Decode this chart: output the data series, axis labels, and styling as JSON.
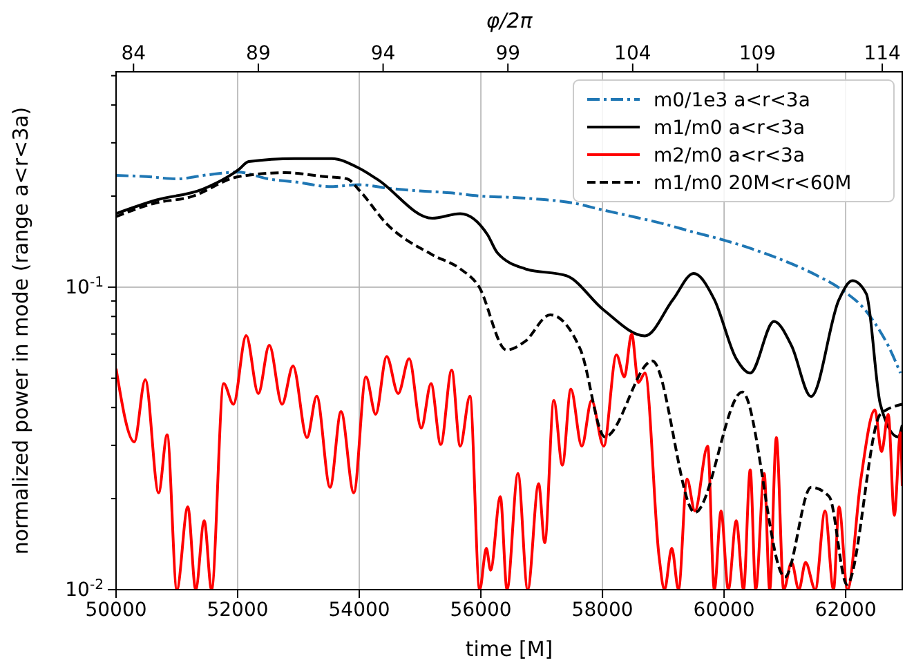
{
  "chart_data": {
    "type": "line",
    "xlabel": "time [M]",
    "ylabel": "normalized power in mode (range a<r<3a)",
    "x2label": "φ/2π",
    "xlim": [
      50000,
      62930
    ],
    "xticks": [
      50000,
      52000,
      54000,
      56000,
      58000,
      60000,
      62000
    ],
    "ylim": [
      0.01,
      0.515
    ],
    "log": true,
    "yticks": [
      {
        "value": 0.01,
        "label": "10$^{-2}$"
      },
      {
        "value": 0.02,
        "label": null
      },
      {
        "value": 0.03,
        "label": null
      },
      {
        "value": 0.04,
        "label": null
      },
      {
        "value": 0.05,
        "label": null
      },
      {
        "value": 0.06,
        "label": null
      },
      {
        "value": 0.07,
        "label": null
      },
      {
        "value": 0.08,
        "label": null
      },
      {
        "value": 0.09,
        "label": null
      },
      {
        "value": 0.1,
        "label": "10$^{-1}$"
      },
      {
        "value": 0.2,
        "label": null
      },
      {
        "value": 0.3,
        "label": null
      },
      {
        "value": 0.4,
        "label": null
      },
      {
        "value": 0.5,
        "label": null
      }
    ],
    "x2lim": [
      83.3,
      114.8
    ],
    "x2ticks": [
      84,
      89,
      94,
      99,
      104,
      109,
      114
    ],
    "grid": true,
    "legend": "top right",
    "series": [
      {
        "name": "m0/1e3 a<r<3a",
        "color": "#1f77b4",
        "line_style": "dashdot",
        "x": [
          50000,
          50500,
          51000,
          51500,
          52000,
          52500,
          53000,
          53500,
          54000,
          54500,
          55000,
          55500,
          56000,
          56500,
          57000,
          57500,
          58000,
          58500,
          59000,
          59500,
          60000,
          60500,
          61000,
          61500,
          62000,
          62300,
          62500,
          62700,
          62900
        ],
        "values": [
          0.234,
          0.232,
          0.228,
          0.235,
          0.24,
          0.228,
          0.222,
          0.215,
          0.218,
          0.212,
          0.208,
          0.205,
          0.2,
          0.198,
          0.195,
          0.19,
          0.18,
          0.171,
          0.162,
          0.152,
          0.143,
          0.133,
          0.122,
          0.11,
          0.096,
          0.085,
          0.075,
          0.064,
          0.052
        ]
      },
      {
        "name": "m1/m0 a<r<3a",
        "color": "#000000",
        "line_style": "solid",
        "x": [
          50000,
          50660,
          51430,
          52020,
          52180,
          52930,
          53550,
          54000,
          54300,
          55200,
          55660,
          56110,
          56270,
          56730,
          57410,
          58020,
          58700,
          59160,
          59500,
          59840,
          60200,
          60430,
          60820,
          61110,
          61430,
          61890,
          62110,
          62340,
          62570,
          62860,
          62930
        ],
        "values": [
          0.175,
          0.194,
          0.211,
          0.245,
          0.26,
          0.266,
          0.266,
          0.247,
          0.227,
          0.169,
          0.175,
          0.149,
          0.13,
          0.115,
          0.109,
          0.084,
          0.069,
          0.091,
          0.111,
          0.091,
          0.058,
          0.052,
          0.077,
          0.064,
          0.0435,
          0.091,
          0.105,
          0.095,
          0.041,
          0.032,
          0.035
        ]
      },
      {
        "name": "m2/m0 a<r<3a",
        "color": "#ff0000",
        "line_style": "solid",
        "x": [
          50000,
          50300,
          50480,
          50700,
          50840,
          51000,
          51180,
          51310,
          51450,
          51570,
          51770,
          51930,
          52140,
          52340,
          52520,
          52730,
          52910,
          53140,
          53300,
          53520,
          53700,
          53910,
          54110,
          54270,
          54450,
          54640,
          54820,
          55020,
          55180,
          55340,
          55520,
          55660,
          55820,
          55980,
          56090,
          56160,
          56320,
          56430,
          56610,
          56770,
          56950,
          57050,
          57200,
          57340,
          57480,
          57660,
          57820,
          58020,
          58230,
          58360,
          58480,
          58590,
          58700,
          58930,
          59020,
          59140,
          59250,
          59390,
          59520,
          59730,
          59840,
          59950,
          60070,
          60200,
          60320,
          60430,
          60520,
          60660,
          60750,
          60860,
          60980,
          61110,
          61230,
          61340,
          61500,
          61660,
          61800,
          61890,
          62030,
          62250,
          62480,
          62590,
          62700,
          62800,
          62900,
          62930
        ],
        "values": [
          0.0538,
          0.0308,
          0.0494,
          0.0209,
          0.0325,
          0.01,
          0.0188,
          0.01,
          0.0169,
          0.01,
          0.048,
          0.041,
          0.0692,
          0.0445,
          0.0643,
          0.041,
          0.0549,
          0.0318,
          0.0436,
          0.0218,
          0.0388,
          0.0209,
          0.0505,
          0.038,
          0.059,
          0.0445,
          0.058,
          0.0342,
          0.048,
          0.0302,
          0.0532,
          0.0298,
          0.0436,
          0.01,
          0.0137,
          0.0116,
          0.0203,
          0.01,
          0.0242,
          0.01,
          0.0224,
          0.0143,
          0.0422,
          0.0258,
          0.046,
          0.0298,
          0.0422,
          0.0298,
          0.0597,
          0.0505,
          0.07,
          0.0484,
          0.052,
          0.0129,
          0.01,
          0.0137,
          0.01,
          0.0232,
          0.0182,
          0.0298,
          0.01,
          0.0182,
          0.01,
          0.0169,
          0.01,
          0.0249,
          0.01,
          0.0242,
          0.01,
          0.0318,
          0.01,
          0.0123,
          0.01,
          0.0123,
          0.01,
          0.0182,
          0.01,
          0.0188,
          0.01,
          0.0232,
          0.0393,
          0.0286,
          0.038,
          0.0176,
          0.033,
          0.022
        ]
      },
      {
        "name": "m1/m0 20M<r<60M",
        "color": "#000000",
        "line_style": "dashed",
        "x": [
          50000,
          50660,
          51200,
          52020,
          52780,
          53430,
          53800,
          54000,
          54450,
          55200,
          55660,
          55960,
          56420,
          56720,
          57140,
          57640,
          58040,
          58820,
          59520,
          60300,
          61000,
          61430,
          61730,
          62020,
          62570,
          62930
        ],
        "values": [
          0.171,
          0.19,
          0.198,
          0.232,
          0.239,
          0.232,
          0.228,
          0.209,
          0.162,
          0.128,
          0.115,
          0.101,
          0.062,
          0.066,
          0.081,
          0.062,
          0.032,
          0.057,
          0.018,
          0.045,
          0.011,
          0.0218,
          0.0203,
          0.0104,
          0.038,
          0.041
        ]
      }
    ]
  }
}
